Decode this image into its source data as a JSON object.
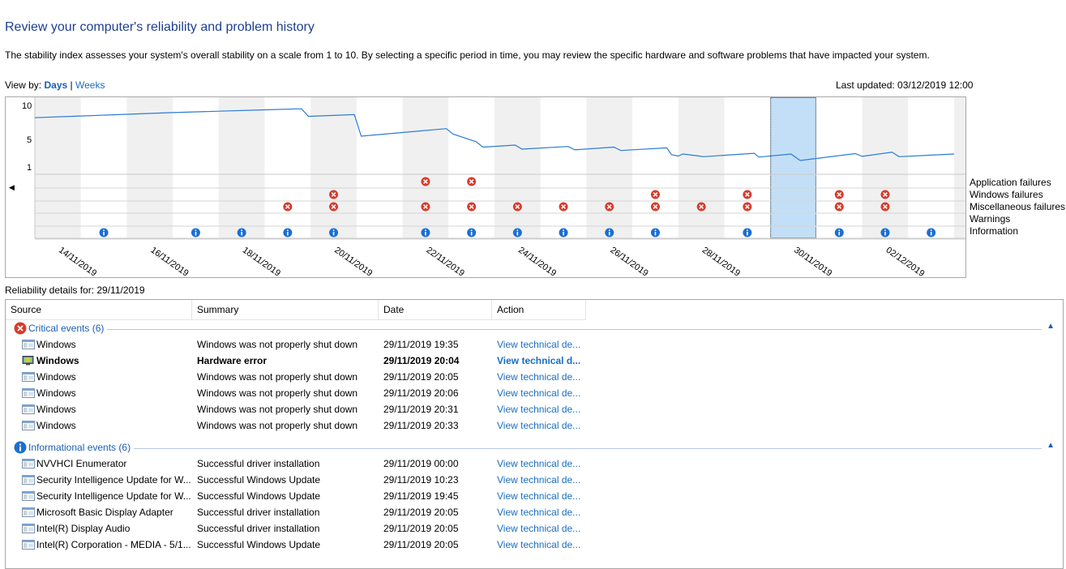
{
  "title": "Review your computer's reliability and problem history",
  "description": "The stability index assesses your system's overall stability on a scale from 1 to 10. By selecting a specific period in time, you may review the specific hardware and software problems that have impacted your system.",
  "view_by": {
    "label": "View by:",
    "days": "Days",
    "separator": "|",
    "weeks": "Weeks"
  },
  "last_updated": "Last updated: 03/12/2019 12:00",
  "chart_data": {
    "type": "line",
    "y_ticks": [
      "10",
      "5",
      "1"
    ],
    "ylim": [
      1,
      10
    ],
    "x_labels": [
      "14/11/2019",
      "16/11/2019",
      "18/11/2019",
      "20/11/2019",
      "22/11/2019",
      "24/11/2019",
      "26/11/2019",
      "28/11/2019",
      "30/11/2019",
      "02/12/2019"
    ],
    "days": [
      "13/11",
      "14/11",
      "15/11",
      "16/11",
      "17/11",
      "18/11",
      "19/11",
      "20/11",
      "21/11",
      "22/11",
      "23/11",
      "24/11",
      "25/11",
      "26/11",
      "27/11",
      "28/11",
      "29/11",
      "30/11",
      "01/12",
      "02/12",
      "03/12"
    ],
    "selected_day_index": 16,
    "series": [
      {
        "values": [
          [
            0,
            8.2
          ],
          [
            1,
            8.45
          ],
          [
            2,
            8.7
          ],
          [
            3,
            8.95
          ],
          [
            4,
            9.15
          ],
          [
            5,
            9.35
          ],
          [
            5.8,
            9.5
          ],
          [
            5.95,
            8.4
          ],
          [
            6.95,
            8.65
          ],
          [
            7.1,
            5.5
          ],
          [
            8.95,
            6.6
          ],
          [
            9.1,
            5.8
          ],
          [
            9.6,
            4.7
          ],
          [
            9.75,
            3.9
          ],
          [
            10.45,
            4.2
          ],
          [
            10.6,
            3.6
          ],
          [
            11.6,
            4.0
          ],
          [
            11.75,
            3.5
          ],
          [
            12.6,
            3.9
          ],
          [
            12.75,
            3.4
          ],
          [
            13.75,
            3.8
          ],
          [
            13.85,
            2.8
          ],
          [
            14.0,
            2.6
          ],
          [
            14.1,
            2.9
          ],
          [
            14.4,
            2.65
          ],
          [
            14.55,
            2.5
          ],
          [
            15.65,
            3.0
          ],
          [
            15.75,
            2.45
          ],
          [
            16.45,
            2.9
          ],
          [
            16.65,
            1.95
          ],
          [
            17.85,
            2.95
          ],
          [
            18.0,
            2.55
          ],
          [
            18.65,
            3.15
          ],
          [
            18.8,
            2.5
          ],
          [
            20,
            2.9
          ]
        ]
      }
    ],
    "event_rows": [
      "Application failures",
      "Windows failures",
      "Miscellaneous failures",
      "Warnings",
      "Information"
    ],
    "events": {
      "Application failures": [
        8,
        9
      ],
      "Windows failures": [
        6,
        13,
        15,
        17,
        18
      ],
      "Miscellaneous failures": [
        5,
        6,
        8,
        9,
        10,
        11,
        12,
        13,
        14,
        15,
        17,
        18
      ],
      "Warnings": [],
      "Information": [
        1,
        3,
        4,
        5,
        6,
        8,
        9,
        10,
        11,
        12,
        13,
        15,
        17,
        18,
        19
      ]
    },
    "grid": true,
    "legend": "right"
  },
  "reliability_details": "Reliability details for: 29/11/2019",
  "columns": {
    "source": "Source",
    "summary": "Summary",
    "date": "Date",
    "action": "Action"
  },
  "groups": [
    {
      "label": "Critical events (6)",
      "icon": "critical-icon",
      "rows": [
        {
          "source": "Windows",
          "summary": "Windows was not properly shut down",
          "date": "29/11/2019 19:35",
          "action": "View technical de...",
          "icon": "window-icon",
          "bold": false
        },
        {
          "source": "Windows",
          "summary": "Hardware error",
          "date": "29/11/2019 20:04",
          "action": "View technical d...",
          "icon": "hardware-icon",
          "bold": true
        },
        {
          "source": "Windows",
          "summary": "Windows was not properly shut down",
          "date": "29/11/2019 20:05",
          "action": "View technical de...",
          "icon": "window-icon",
          "bold": false
        },
        {
          "source": "Windows",
          "summary": "Windows was not properly shut down",
          "date": "29/11/2019 20:06",
          "action": "View technical de...",
          "icon": "window-icon",
          "bold": false
        },
        {
          "source": "Windows",
          "summary": "Windows was not properly shut down",
          "date": "29/11/2019 20:31",
          "action": "View technical de...",
          "icon": "window-icon",
          "bold": false
        },
        {
          "source": "Windows",
          "summary": "Windows was not properly shut down",
          "date": "29/11/2019 20:33",
          "action": "View technical de...",
          "icon": "window-icon",
          "bold": false
        }
      ]
    },
    {
      "label": "Informational events (6)",
      "icon": "info-icon",
      "rows": [
        {
          "source": "NVVHCI Enumerator",
          "summary": "Successful driver installation",
          "date": "29/11/2019 00:00",
          "action": "View technical de...",
          "icon": "window-icon",
          "bold": false
        },
        {
          "source": "Security Intelligence Update for W...",
          "summary": "Successful Windows Update",
          "date": "29/11/2019 10:23",
          "action": "View technical de...",
          "icon": "window-icon",
          "bold": false
        },
        {
          "source": "Security Intelligence Update for W...",
          "summary": "Successful Windows Update",
          "date": "29/11/2019 19:45",
          "action": "View technical de...",
          "icon": "window-icon",
          "bold": false
        },
        {
          "source": "Microsoft Basic Display Adapter",
          "summary": "Successful driver installation",
          "date": "29/11/2019 20:05",
          "action": "View technical de...",
          "icon": "window-icon",
          "bold": false
        },
        {
          "source": "Intel(R) Display Audio",
          "summary": "Successful driver installation",
          "date": "29/11/2019 20:05",
          "action": "View technical de...",
          "icon": "window-icon",
          "bold": false
        },
        {
          "source": "Intel(R) Corporation - MEDIA - 5/1...",
          "summary": "Successful Windows Update",
          "date": "29/11/2019 20:05",
          "action": "View technical de...",
          "icon": "window-icon",
          "bold": false
        }
      ]
    }
  ],
  "colors": {
    "title": "#1e3f8f",
    "link": "#1a6ec0",
    "line": "#2b7bd6",
    "selected": "#c3dff7",
    "critical": "#d83b2c",
    "info": "#1b6fd1",
    "alt_column": "#f0f0f0"
  }
}
